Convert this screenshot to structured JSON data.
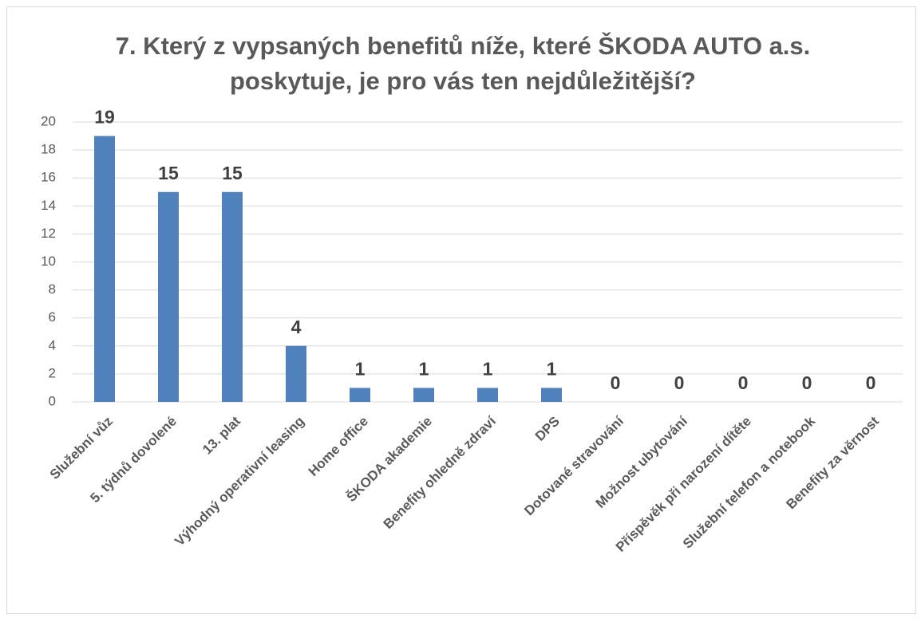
{
  "chart_data": {
    "type": "bar",
    "title": "7. Který z vypsaných benefitů níže, které ŠKODA AUTO a.s. poskytuje, je pro vás ten nejdůležitější?",
    "categories": [
      "Služební vůz",
      "5. týdnů dovolené",
      "13. plat",
      "Výhodný operativní leasing",
      "Home office",
      "ŠKODA akademie",
      "Benefity ohledně zdraví",
      "DPS",
      "Dotované stravování",
      "Možnost ubytování",
      "Příspěvěk při narození dítěte",
      "Služební telefon a notebook",
      "Benefity za věrnost"
    ],
    "values": [
      19,
      15,
      15,
      4,
      1,
      1,
      1,
      1,
      0,
      0,
      0,
      0,
      0
    ],
    "color": "#4f81bd",
    "ylim": [
      0,
      20
    ],
    "yticks": [
      0,
      2,
      4,
      6,
      8,
      10,
      12,
      14,
      16,
      18,
      20
    ],
    "grid": true
  }
}
